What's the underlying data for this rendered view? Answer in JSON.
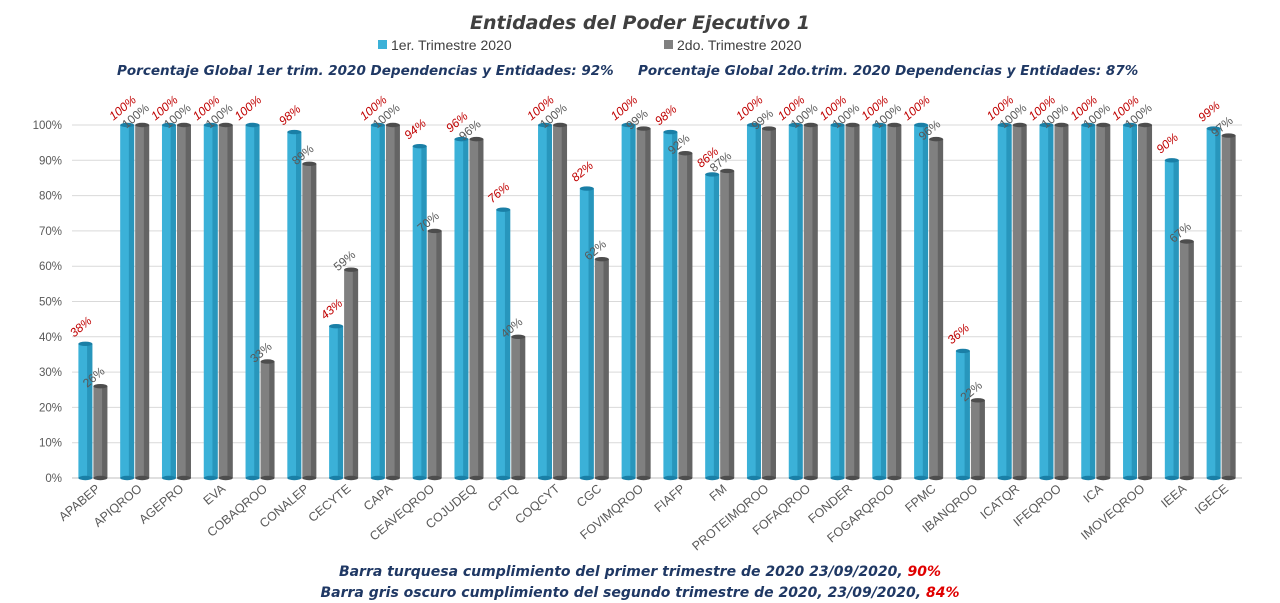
{
  "colors": {
    "series1": "#3bb1d8",
    "series1_dark": "#1a7fa6",
    "series2": "#808080",
    "series2_dark": "#4d4d4d",
    "label1": "#c00000",
    "label2": "#595959",
    "highlight": "#e00000"
  },
  "subtitle": {
    "left": "Porcentaje Global 1er trim. 2020 Dependencias y Entidades: 92%",
    "right": "Porcentaje Global  2do.trim.  2020 Dependencias y Entidades: 87%"
  },
  "footer": {
    "line1_text": "Barra turquesa  cumplimiento  del  primer  trimestre  de  2020   23/09/2020, ",
    "line1_value": "90%",
    "line2_text": "Barra gris oscuro  cumplimiento  del  segundo  trimestre  de  2020,  23/09/2020,  ",
    "line2_value": "84%"
  },
  "chart_data": {
    "type": "bar",
    "title": "Entidades del Poder Ejecutivo 1",
    "xlabel": "",
    "ylabel": "",
    "ylim": [
      0,
      100
    ],
    "yticks": [
      "0%",
      "10%",
      "20%",
      "30%",
      "40%",
      "50%",
      "60%",
      "70%",
      "80%",
      "90%",
      "100%"
    ],
    "grid": true,
    "legend_position": "top",
    "categories": [
      "APABEP",
      "APIQROO",
      "AGEPRO",
      "EVA",
      "COBAQROO",
      "CONALEP",
      "CECYTE",
      "CAPA",
      "CEAVEQROO",
      "COJUDEQ",
      "CPTQ",
      "COQCYT",
      "CGC",
      "FOVIMQROO",
      "FIAFP",
      "FM",
      "PROTEIMQROO",
      "FOFAQROO",
      "FONDER",
      "FOGARQROO",
      "FPMC",
      "IBANQROO",
      "ICATQR",
      "IFEQROO",
      "ICA",
      "IMOVEQROO",
      "IEEA",
      "IGECE"
    ],
    "series": [
      {
        "name": "1er. Trimestre 2020",
        "values": [
          38,
          100,
          100,
          100,
          100,
          98,
          43,
          100,
          94,
          96,
          76,
          100,
          82,
          100,
          98,
          86,
          100,
          100,
          100,
          100,
          100,
          36,
          100,
          100,
          100,
          100,
          90,
          99
        ],
        "labels": [
          "38%",
          "100%",
          "100%",
          "100%",
          "100%",
          "98%",
          "43%",
          "100%",
          "94%",
          "96%",
          "76%",
          "100%",
          "82%",
          "100%",
          "98%",
          "86%",
          "100%",
          "100%",
          "100%",
          "100%",
          "100%",
          "36%",
          "100%",
          "100%",
          "100%",
          "100%",
          "90%",
          "99%"
        ]
      },
      {
        "name": "2do. Trimestre 2020",
        "values": [
          26,
          100,
          100,
          100,
          33,
          89,
          59,
          100,
          70,
          96,
          40,
          100,
          62,
          99,
          92,
          87,
          99,
          100,
          100,
          100,
          96,
          22,
          100,
          100,
          100,
          100,
          67,
          97
        ],
        "labels": [
          "26%",
          "100%",
          "100%",
          "100%",
          "33%",
          "89%",
          "59%",
          "100%",
          "70%",
          "96%",
          "40%",
          "100%",
          "62%",
          "99%",
          "92%",
          "87%",
          "99%",
          "100%",
          "100%",
          "100%",
          "96%",
          "22%",
          "100%",
          "100%",
          "100%",
          "100%",
          "67%",
          "97%"
        ]
      }
    ]
  }
}
